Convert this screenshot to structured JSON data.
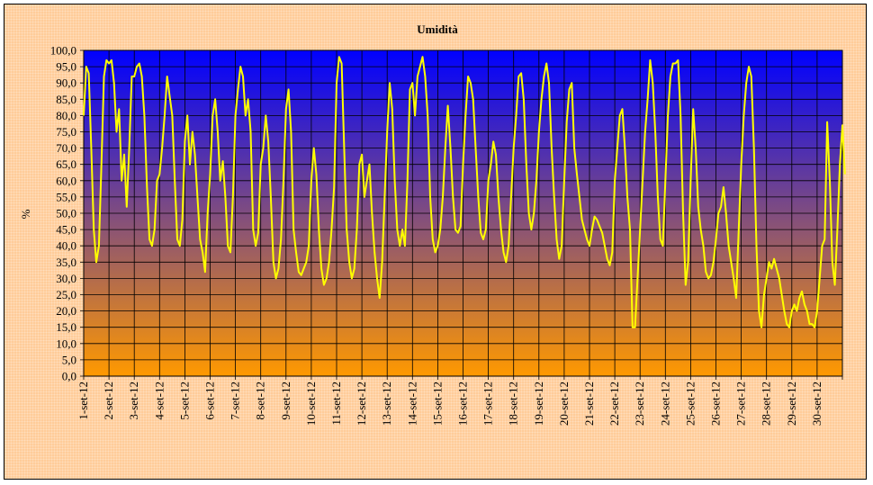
{
  "chart_data": {
    "type": "line",
    "title": "Umidità",
    "xlabel": "",
    "ylabel": "%",
    "ylim": [
      0,
      100
    ],
    "yticks": [
      "0,0",
      "5,0",
      "10,0",
      "15,0",
      "20,0",
      "25,0",
      "30,0",
      "35,0",
      "40,0",
      "45,0",
      "50,0",
      "55,0",
      "60,0",
      "65,0",
      "70,0",
      "75,0",
      "80,0",
      "85,0",
      "90,0",
      "95,0",
      "100,0"
    ],
    "categories": [
      "1-set-12",
      "2-set-12",
      "3-set-12",
      "4-set-12",
      "5-set-12",
      "6-set-12",
      "7-set-12",
      "8-set-12",
      "9-set-12",
      "10-set-12",
      "11-set-12",
      "12-set-12",
      "13-set-12",
      "14-set-12",
      "15-set-12",
      "16-set-12",
      "17-set-12",
      "18-set-12",
      "19-set-12",
      "20-set-12",
      "21-set-12",
      "22-set-12",
      "23-set-12",
      "24-set-12",
      "25-set-12",
      "26-set-12",
      "27-set-12",
      "28-set-12",
      "29-set-12",
      "30-set-12"
    ],
    "grid": true,
    "background": {
      "top": "#0000ff",
      "bottom": "#ff9900"
    },
    "series": [
      {
        "color": "#ffff00",
        "days": [
          [
            80,
            95,
            93,
            70,
            45,
            35,
            40,
            65,
            92,
            97
          ],
          [
            96,
            97,
            90,
            75,
            82,
            60,
            68,
            52,
            70,
            92
          ],
          [
            92,
            95,
            96,
            92,
            80,
            58,
            42,
            40,
            45,
            60
          ],
          [
            62,
            70,
            80,
            92,
            86,
            80,
            60,
            42,
            40,
            48
          ],
          [
            72,
            80,
            65,
            75,
            68,
            55,
            42,
            38,
            32,
            50
          ],
          [
            62,
            80,
            85,
            75,
            60,
            66,
            55,
            40,
            38,
            55
          ],
          [
            80,
            88,
            95,
            92,
            80,
            85,
            75,
            45,
            40,
            44
          ],
          [
            65,
            70,
            80,
            72,
            55,
            35,
            30,
            33,
            42,
            60
          ],
          [
            82,
            88,
            75,
            45,
            38,
            32,
            31,
            33,
            35,
            40
          ],
          [
            60,
            70,
            62,
            45,
            33,
            28,
            30,
            35,
            45,
            58
          ],
          [
            90,
            98,
            96,
            70,
            45,
            35,
            30,
            33,
            45,
            65
          ],
          [
            68,
            55,
            60,
            65,
            50,
            38,
            30,
            24,
            35,
            55
          ],
          [
            75,
            90,
            82,
            60,
            45,
            40,
            45,
            40,
            60,
            88
          ],
          [
            90,
            80,
            92,
            95,
            98,
            92,
            80,
            55,
            42,
            38
          ],
          [
            40,
            45,
            55,
            70,
            83,
            70,
            55,
            45,
            44,
            46
          ],
          [
            65,
            80,
            92,
            90,
            85,
            70,
            55,
            44,
            42,
            45
          ],
          [
            60,
            65,
            72,
            68,
            55,
            45,
            38,
            35,
            40,
            55
          ],
          [
            70,
            80,
            92,
            93,
            85,
            65,
            50,
            45,
            50,
            60
          ],
          [
            75,
            85,
            92,
            96,
            90,
            70,
            55,
            42,
            36,
            40
          ],
          [
            60,
            78,
            88,
            90,
            70,
            62,
            55,
            48,
            45,
            42
          ],
          [
            40,
            45,
            49,
            48,
            46,
            44,
            40,
            36,
            34,
            38
          ],
          [
            60,
            70,
            80,
            82,
            70,
            55,
            45,
            15,
            15,
            30
          ],
          [
            45,
            60,
            75,
            85,
            97,
            90,
            75,
            55,
            42,
            40
          ],
          [
            60,
            80,
            92,
            96,
            96,
            97,
            80,
            50,
            28,
            35
          ],
          [
            60,
            82,
            70,
            52,
            45,
            40,
            32,
            30,
            31,
            35
          ],
          [
            42,
            50,
            52,
            58,
            50,
            40,
            35,
            30,
            24,
            45
          ],
          [
            65,
            80,
            90,
            95,
            92,
            70,
            40,
            20,
            15,
            25
          ],
          [
            30,
            35,
            33,
            36,
            33,
            30,
            25,
            20,
            16,
            15
          ],
          [
            20,
            22,
            20,
            24,
            26,
            22,
            20,
            16,
            16,
            15
          ],
          [
            20,
            30,
            40,
            42,
            78,
            60,
            35,
            28,
            45,
            65
          ],
          [
            77,
            62
          ]
        ]
      }
    ]
  }
}
